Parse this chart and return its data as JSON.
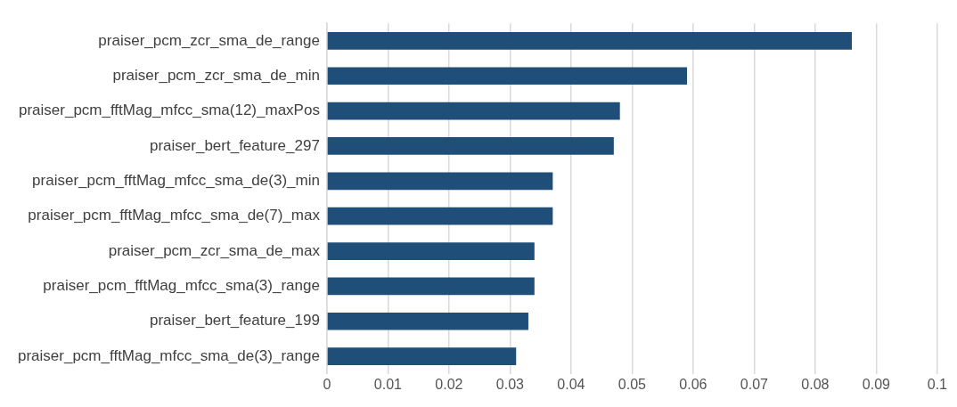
{
  "chart_data": {
    "type": "bar",
    "orientation": "horizontal",
    "categories": [
      "praiser_pcm_zcr_sma_de_range",
      "praiser_pcm_zcr_sma_de_min",
      "praiser_pcm_fftMag_mfcc_sma(12)_maxPos",
      "praiser_bert_feature_297",
      "praiser_pcm_fftMag_mfcc_sma_de(3)_min",
      "praiser_pcm_fftMag_mfcc_sma_de(7)_max",
      "praiser_pcm_zcr_sma_de_max",
      "praiser_pcm_fftMag_mfcc_sma(3)_range",
      "praiser_bert_feature_199",
      "praiser_pcm_fftMag_mfcc_sma_de(3)_range"
    ],
    "values": [
      0.086,
      0.059,
      0.048,
      0.047,
      0.037,
      0.037,
      0.034,
      0.034,
      0.033,
      0.031
    ],
    "color": "#1f4e79",
    "xlim": [
      0,
      0.1
    ],
    "xticks": [
      0,
      0.01,
      0.02,
      0.03,
      0.04,
      0.05,
      0.06,
      0.07,
      0.08,
      0.09,
      0.1
    ],
    "grid": "x"
  }
}
